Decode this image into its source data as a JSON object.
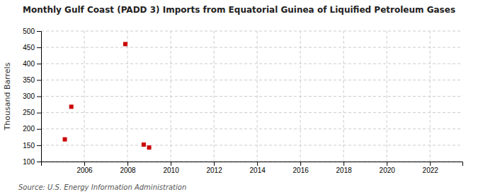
{
  "chart_data": {
    "type": "scatter",
    "title": "Monthly Gulf Coast (PADD 3) Imports from Equatorial Guinea of Liquified Petroleum Gases",
    "ylabel": "Thousand Barrels",
    "source": "Source: U.S. Energy Information Administration",
    "x": [
      2005.1,
      2005.4,
      2007.9,
      2008.75,
      2009.0
    ],
    "values": [
      168,
      268,
      460,
      152,
      143
    ],
    "color": "#cc0000",
    "marker": "square",
    "xlim": [
      2004.0,
      2023.5
    ],
    "ylim": [
      100,
      500
    ],
    "xticks": [
      2006,
      2008,
      2010,
      2012,
      2014,
      2016,
      2018,
      2020,
      2022
    ],
    "yticks": [
      100,
      150,
      200,
      250,
      300,
      350,
      400,
      450,
      500
    ],
    "grid": true
  }
}
